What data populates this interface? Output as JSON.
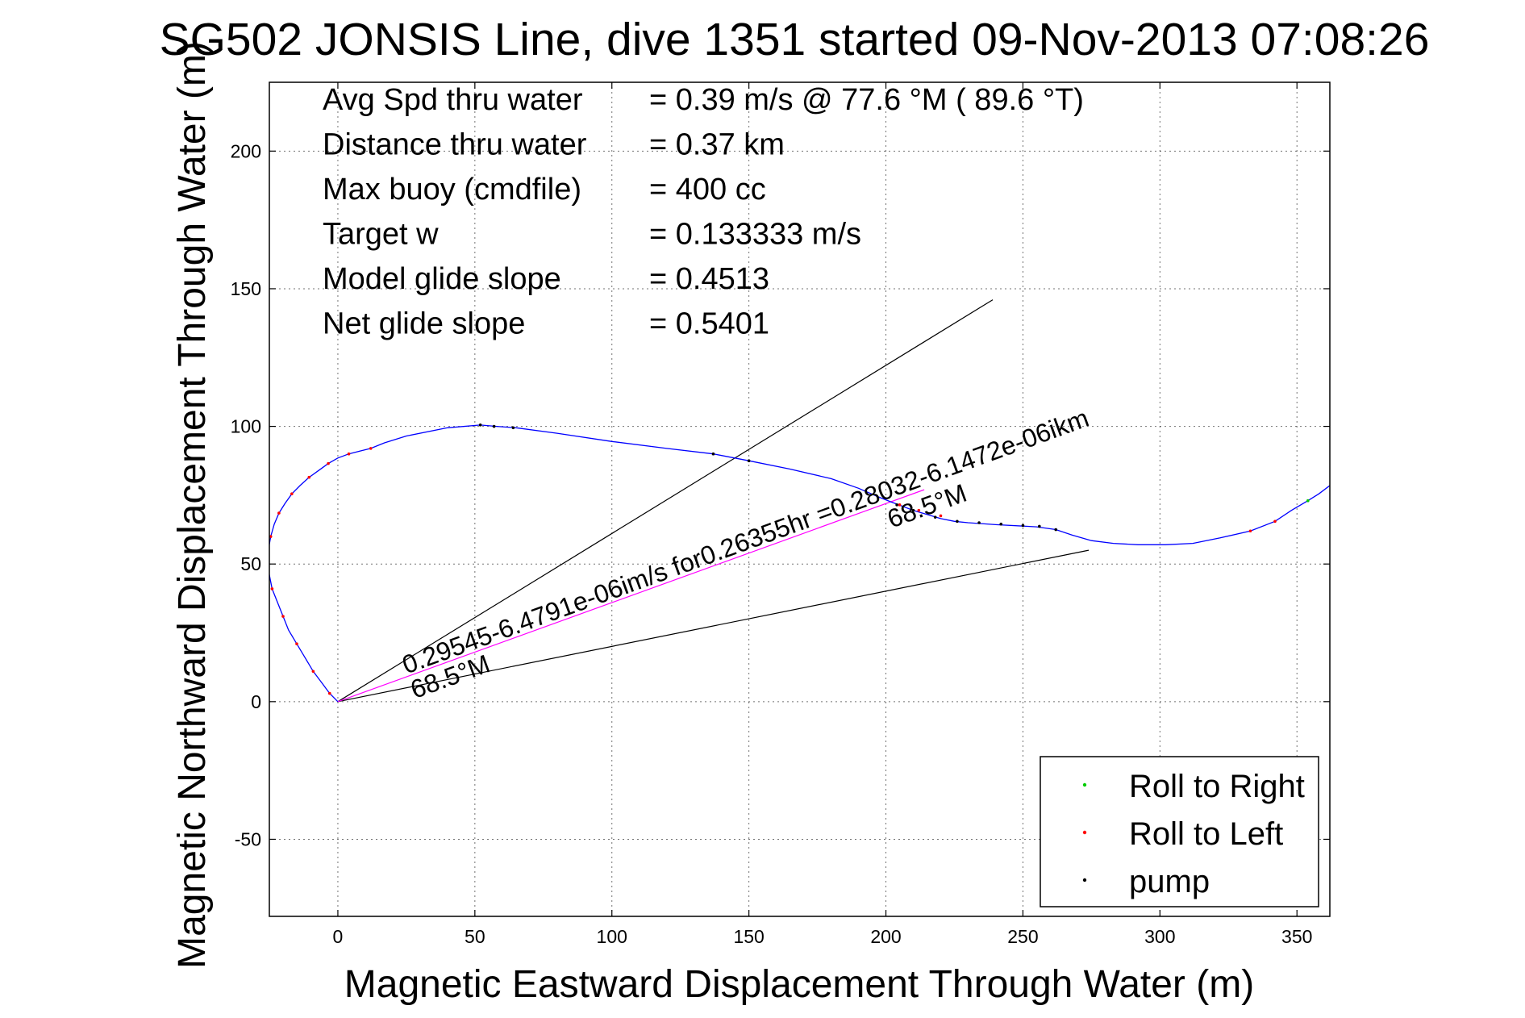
{
  "chart_data": {
    "type": "line",
    "title": "SG502 JONSIS Line, dive 1351 started 09-Nov-2013 07:08:26",
    "xlabel": "Magnetic Eastward Displacement Through Water (m)",
    "ylabel": "Magnetic Northward Displacement Through Water (m)",
    "xlim": [
      -25,
      362
    ],
    "ylim": [
      -78,
      225
    ],
    "xticks": [
      0,
      50,
      100,
      150,
      200,
      250,
      300,
      350
    ],
    "yticks": [
      -50,
      0,
      50,
      100,
      150,
      200
    ],
    "grid": true,
    "legend_position": "bottom-right",
    "stats": [
      {
        "label": "Avg Spd thru water",
        "value": "=  0.39 m/s @  77.6 °M ( 89.6 °T)"
      },
      {
        "label": "Distance thru water",
        "value": "=  0.37 km"
      },
      {
        "label": "Max buoy (cmdfile)",
        "value": "= 400 cc"
      },
      {
        "label": "Target w",
        "value": "= 0.133333 m/s"
      },
      {
        "label": "Model glide slope",
        "value": "= 0.4513"
      },
      {
        "label": "Net glide slope",
        "value": "= 0.5401"
      }
    ],
    "legend": [
      {
        "name": "Roll to Right",
        "color": "#00cc00"
      },
      {
        "name": "Roll to Left",
        "color": "#ff0000"
      },
      {
        "name": "pump",
        "color": "#000000"
      }
    ],
    "series": [
      {
        "name": "track",
        "color": "#0000ff",
        "x": [
          0,
          -3,
          -6,
          -9,
          -12,
          -15,
          -18,
          -20,
          -22,
          -24,
          -25,
          -25.5,
          -25.3,
          -24.5,
          -23.2,
          -21.5,
          -19.3,
          -16.8,
          -13.8,
          -10.5,
          -7,
          -3.5,
          0,
          4,
          8,
          12,
          17,
          25,
          40,
          52,
          58,
          65,
          80,
          100,
          120,
          137,
          150,
          165,
          180,
          190,
          197,
          202,
          206,
          210,
          215,
          220,
          225,
          230,
          240,
          255,
          262,
          268,
          275,
          283,
          292,
          302,
          312,
          322,
          333,
          342,
          348,
          354,
          358,
          362
        ],
        "y": [
          0,
          3,
          7,
          11,
          16,
          21,
          26,
          31,
          36,
          41,
          46,
          51,
          55.5,
          60,
          64.5,
          68.5,
          72,
          75.5,
          78.5,
          81.5,
          84,
          86.5,
          88.5,
          90,
          91,
          92,
          94,
          96.5,
          99.5,
          100.5,
          100,
          99.5,
          97.5,
          94.5,
          92,
          90,
          87.5,
          84.5,
          81,
          77.5,
          74.5,
          72.5,
          71,
          69.5,
          68,
          66.5,
          65.5,
          65,
          64.3,
          63.5,
          62.5,
          60.5,
          58.5,
          57.5,
          57,
          57,
          57.5,
          59.5,
          62,
          65.5,
          69.5,
          73,
          75.5,
          78.5
        ]
      },
      {
        "name": "pump",
        "color": "#000000",
        "x": [
          52,
          57,
          64,
          137,
          150,
          204,
          210,
          218,
          226,
          234,
          242,
          250,
          256,
          262
        ],
        "y": [
          100.5,
          100,
          99.5,
          90,
          87.5,
          71.5,
          69.5,
          67,
          65.5,
          65,
          64.5,
          64,
          63.7,
          62.5
        ]
      },
      {
        "name": "Roll to Left",
        "color": "#ff0000",
        "x": [
          -3,
          -9,
          -15,
          -20,
          -24,
          -25.5,
          -24.5,
          -21.5,
          -16.8,
          -10.5,
          -3.5,
          4,
          12,
          205,
          212,
          220,
          333,
          342
        ],
        "y": [
          3,
          11,
          21,
          31,
          41,
          51,
          60,
          68.5,
          75.5,
          81.5,
          86.5,
          90,
          92,
          71.5,
          69.5,
          67.5,
          62,
          65.5
        ]
      },
      {
        "name": "Roll to Right",
        "color": "#00cc00",
        "x": [
          354
        ],
        "y": [
          73
        ]
      }
    ],
    "reference_lines": [
      {
        "color": "#000000",
        "x": [
          0,
          239
        ],
        "y": [
          0,
          146
        ]
      },
      {
        "color": "#000000",
        "x": [
          0,
          274
        ],
        "y": [
          0,
          55
        ]
      },
      {
        "color": "#ff00ff",
        "x": [
          0,
          214
        ],
        "y": [
          0,
          77
        ]
      }
    ],
    "annotations": [
      {
        "text": "0.29545-6.4791e-06im/s for0.26355hr =0.28032-6.1472e-06ikm",
        "x": 25,
        "y": 10,
        "angle": -20
      },
      {
        "text": "68.5°M",
        "x": 28,
        "y": 1,
        "angle": -20
      },
      {
        "text": "68.5°M",
        "x": 202,
        "y": 63,
        "angle": -20
      }
    ]
  }
}
